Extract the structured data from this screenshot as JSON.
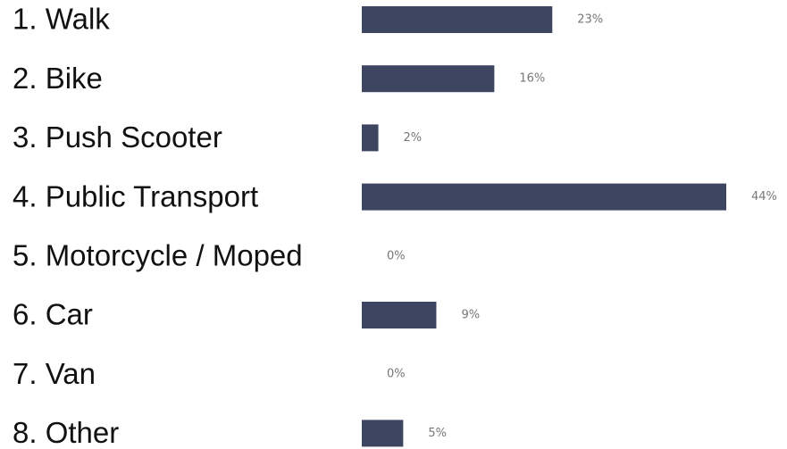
{
  "chart_data": {
    "type": "bar",
    "categories": [
      "1. Walk",
      "2. Bike",
      "3. Push Scooter",
      "4. Public Transport",
      "5. Motorcycle / Moped",
      "6. Car",
      "7. Van",
      "8. Other"
    ],
    "values": [
      23,
      16,
      2,
      44,
      0,
      9,
      0,
      5
    ],
    "value_labels": [
      "23%",
      "16%",
      "2%",
      "44%",
      "0%",
      "9%",
      "0%",
      "5%"
    ],
    "color": "#3d4560"
  }
}
